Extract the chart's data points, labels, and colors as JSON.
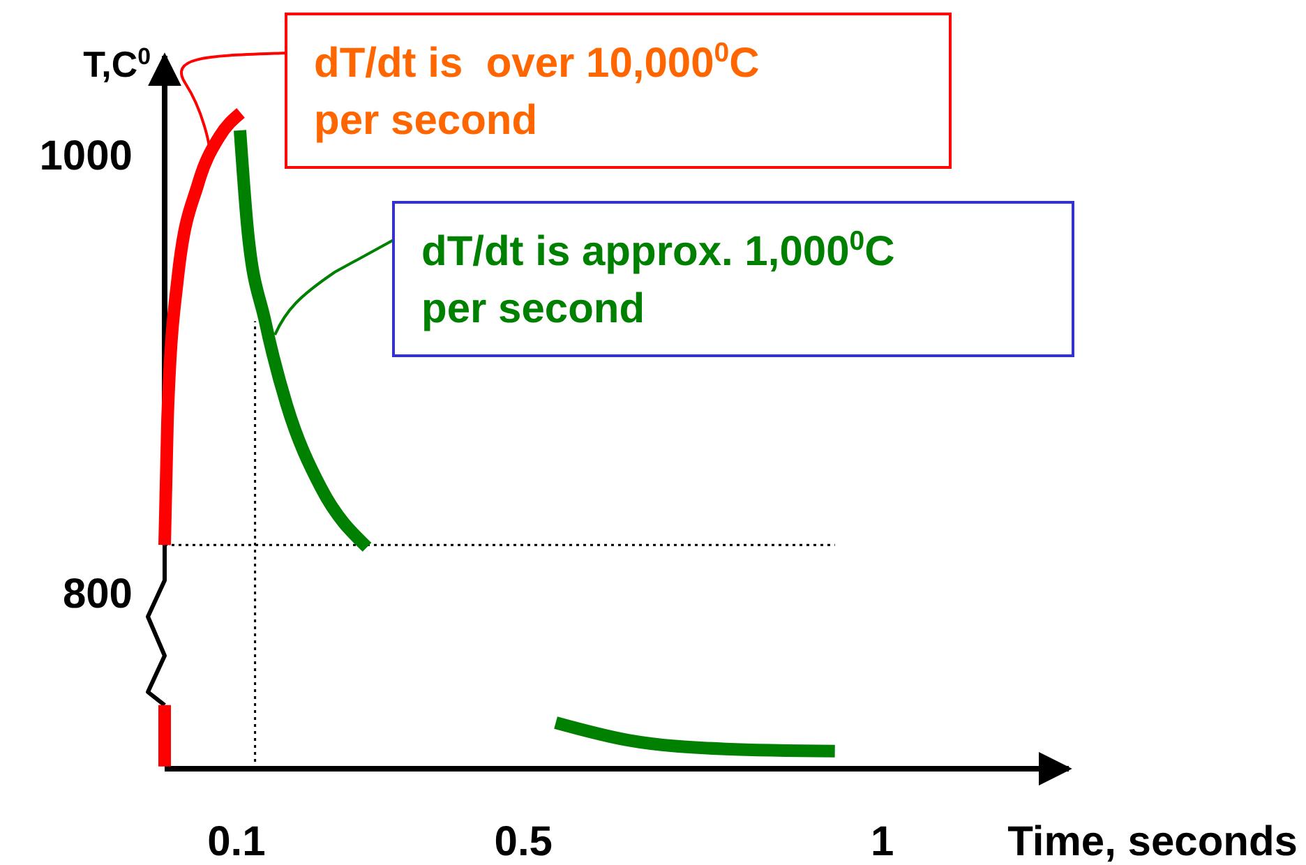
{
  "chart_data": {
    "type": "line",
    "xlabel": "Time, seconds",
    "ylabel": "T,C$^{0}$",
    "xlim": [
      0,
      1.26
    ],
    "ylim": [
      720,
      1045
    ],
    "xticks": [
      0.1,
      0.5,
      1
    ],
    "yticks": [
      800,
      1000
    ],
    "series": [
      {
        "color": "#ff0000",
        "x": [
          0,
          0,
          null,
          0,
          0.004,
          0.018,
          0.047,
          0.076,
          0.106
        ],
        "values": [
          721,
          749,
          null,
          822,
          879,
          943,
          987,
          1008,
          1019
        ]
      },
      {
        "color": "#008000",
        "x": [
          0.105,
          0.115,
          0.14,
          0.17,
          0.218,
          0.282
        ],
        "values": [
          1011,
          968,
          924,
          886,
          848,
          821
        ]
      },
      {
        "color": "#008000",
        "x": [
          0.545,
          0.646,
          0.782,
          0.934
        ],
        "values": [
          741,
          733,
          729,
          728
        ]
      }
    ],
    "ref_lines": [
      {
        "axis": "y",
        "value": 822,
        "line_style": "dotted",
        "color": "#000000"
      },
      {
        "axis": "x",
        "value": 0.126,
        "line_style": "dotted",
        "color": "#000000"
      }
    ],
    "annotations": [
      "dT/dt is  over 10,000$^{0}$C per second",
      "dT/dt is approx. 1,000$^{0}$C per second"
    ],
    "line_style": "solid"
  }
}
